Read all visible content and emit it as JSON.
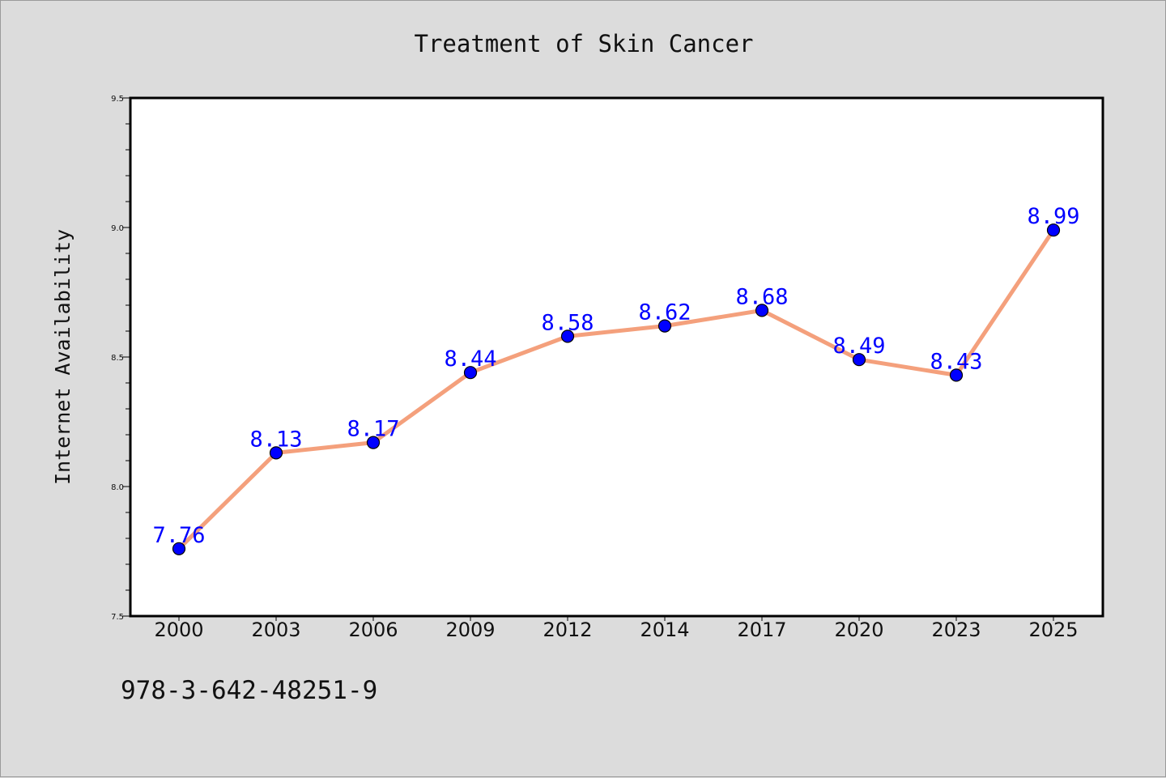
{
  "chart_data": {
    "type": "line",
    "title": "Treatment of Skin Cancer",
    "xlabel": "",
    "ylabel": "Internet Availability",
    "categories": [
      "2000",
      "2003",
      "2006",
      "2009",
      "2012",
      "2014",
      "2017",
      "2020",
      "2023",
      "2025"
    ],
    "series": [
      {
        "values": [
          7.76,
          8.13,
          8.17,
          8.44,
          8.58,
          8.62,
          8.68,
          8.49,
          8.43,
          8.99
        ],
        "labels": [
          "7.76",
          "8.13",
          "8.17",
          "8.44",
          "8.58",
          "8.62",
          "8.68",
          "8.49",
          "8.43",
          "8.99"
        ],
        "line_color": "#f4a07c",
        "marker_color": "#0000ff"
      }
    ],
    "ylim": [
      7.5,
      9.5
    ],
    "yticks": [
      "7.5",
      "8.0",
      "8.5",
      "9.0",
      "9.5"
    ],
    "grid": false,
    "legend": "none"
  },
  "footer": {
    "isbn": "978-3-642-48251-9"
  }
}
